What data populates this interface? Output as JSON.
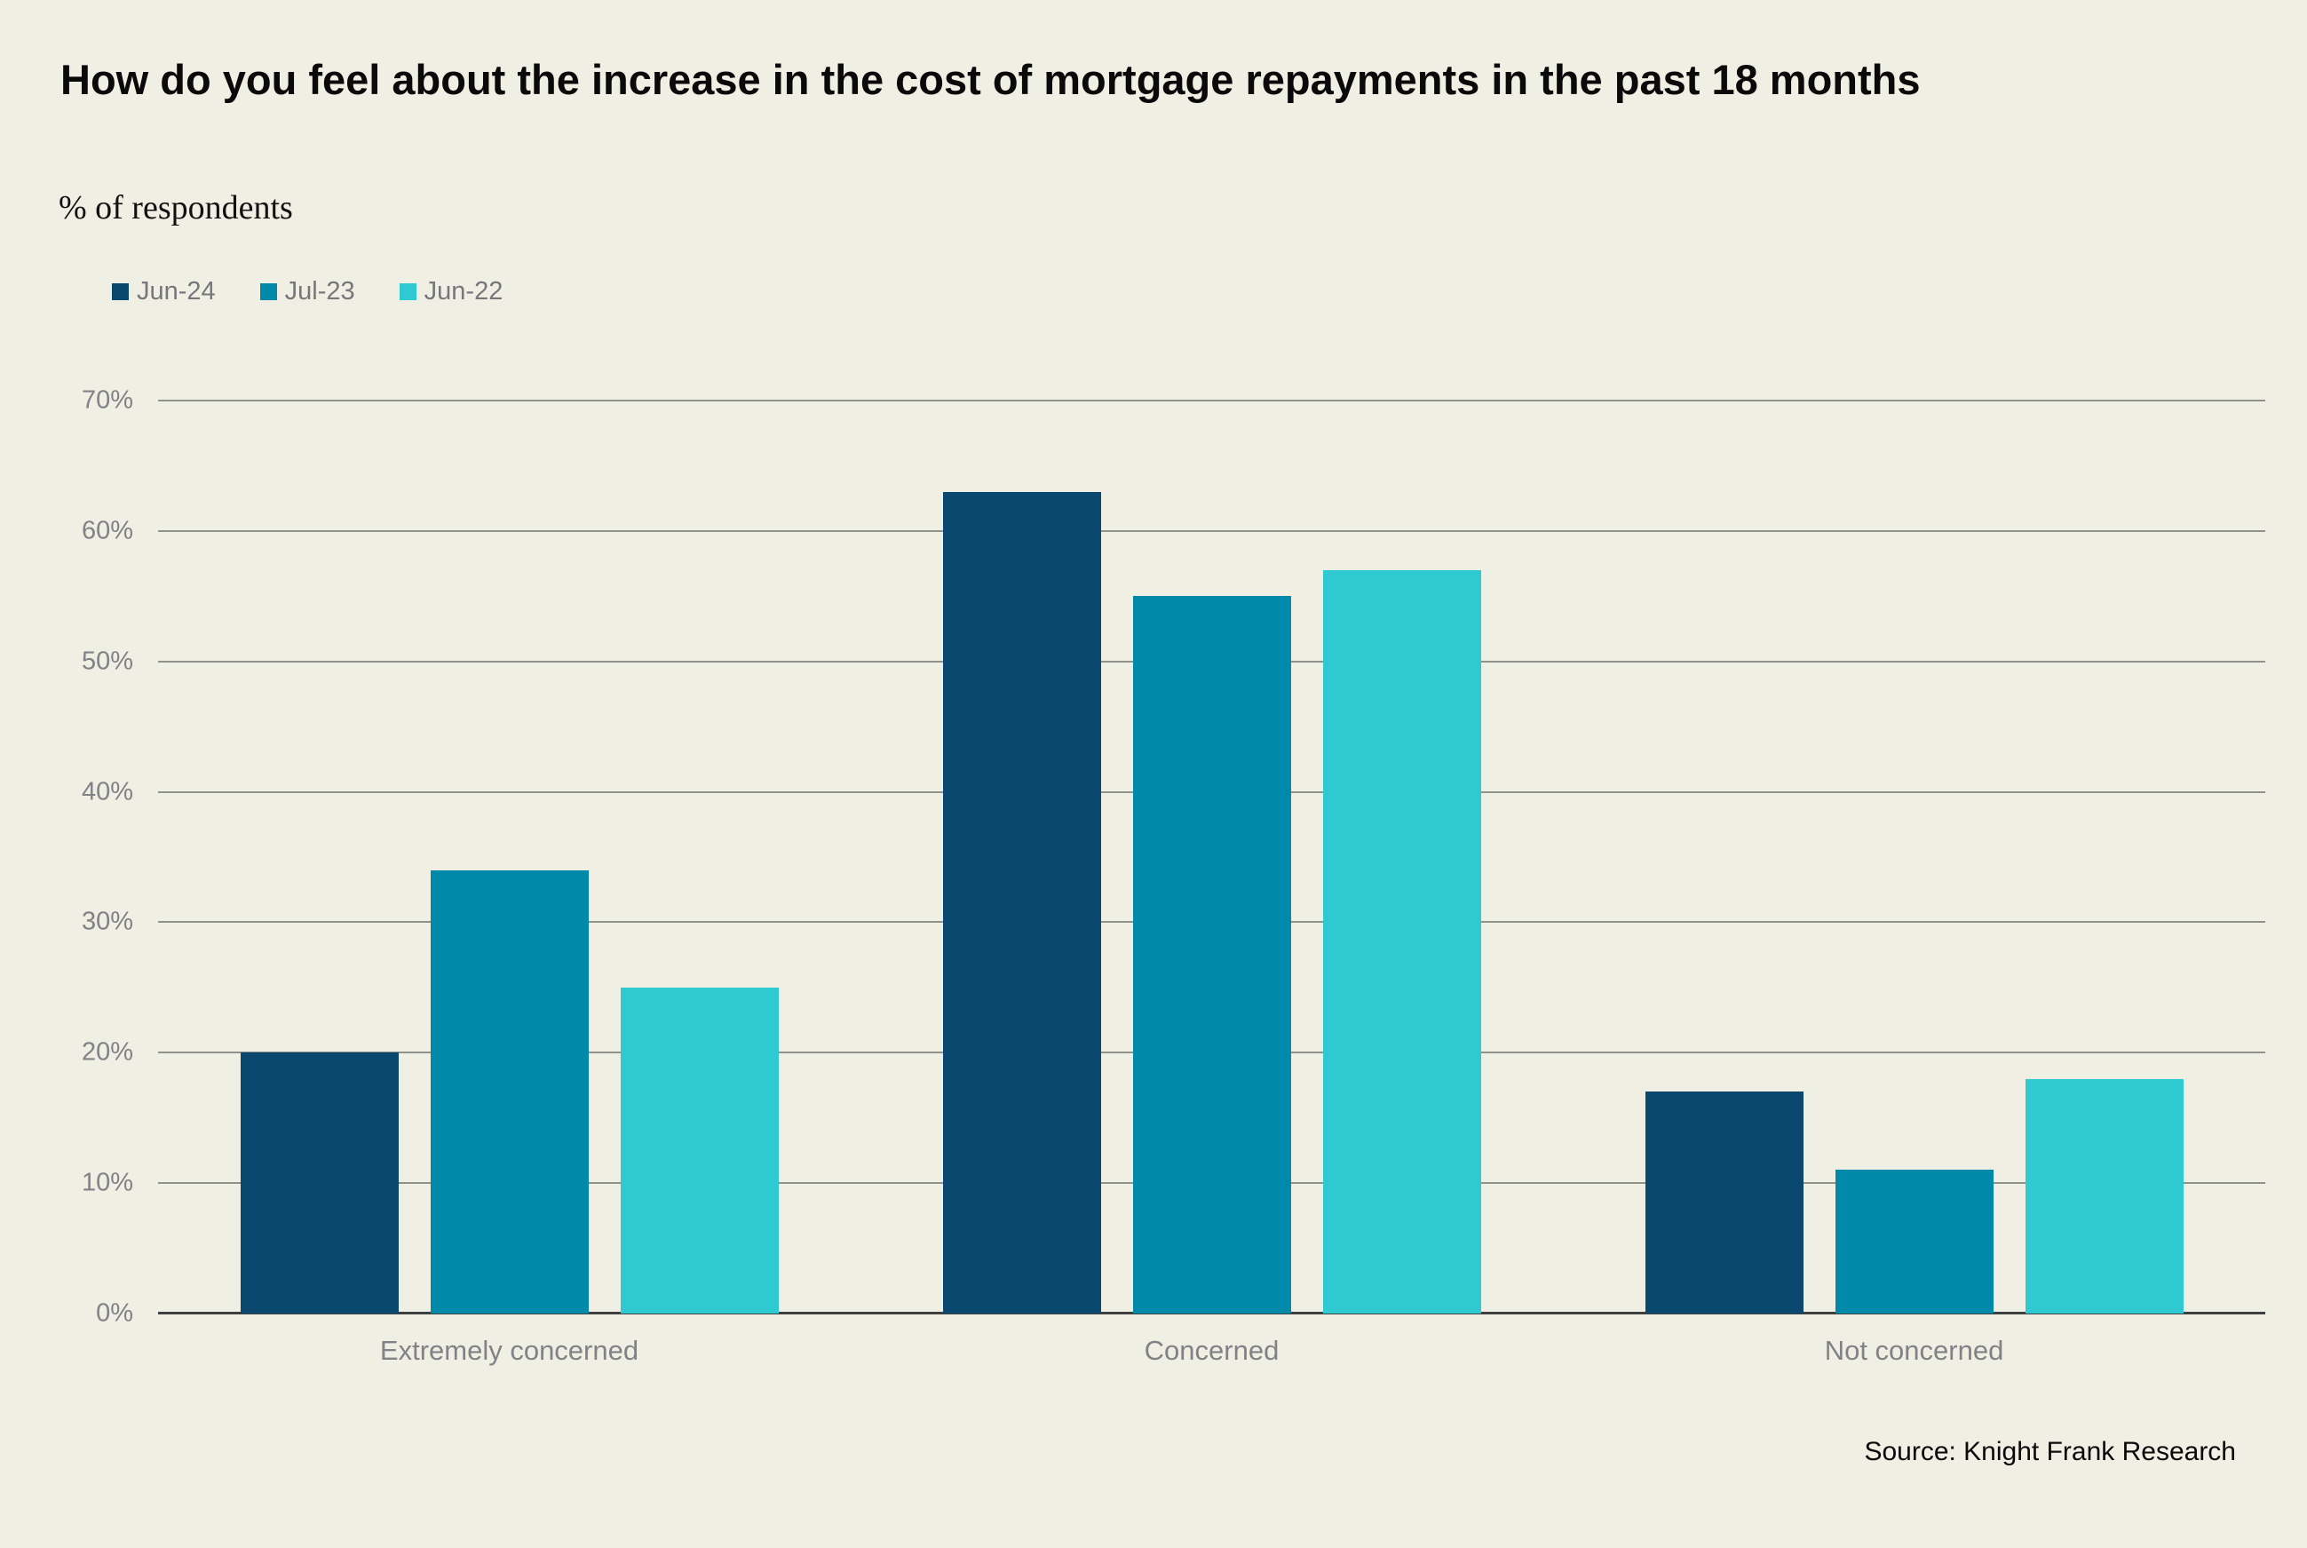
{
  "title": "How do you feel about the increase in the cost of mortgage repayments in the past 18 months",
  "subtitle": "% of respondents",
  "source_text": "Source: Knight Frank Research",
  "colors": {
    "background": "#F0EFE4",
    "gridline": "#8F918B",
    "axis_line": "#3E3F3F",
    "tick_label": "#808285",
    "legend_label": "#76777B",
    "title_text": "#0A0A0A",
    "series_jun24": "#0A4870",
    "series_jul23": "#0089A8",
    "series_jun22": "#2EC9D1"
  },
  "chart_data": {
    "type": "bar",
    "title": "How do you feel about the increase in the cost of mortgage repayments in the past 18 months",
    "subtitle": "% of respondents",
    "categories": [
      "Extremely concerned",
      "Concerned",
      "Not concerned"
    ],
    "series": [
      {
        "name": "Jun-24",
        "color": "#0A4870",
        "values": [
          20,
          63,
          17
        ]
      },
      {
        "name": "Jul-23",
        "color": "#0089A8",
        "values": [
          34,
          55,
          11
        ]
      },
      {
        "name": "Jun-22",
        "color": "#2EC9D1",
        "values": [
          25,
          57,
          18
        ]
      }
    ],
    "xlabel": "",
    "ylabel": "% of respondents",
    "ylim": [
      0,
      70
    ],
    "ytick_step": 10,
    "yticks": [
      "0%",
      "10%",
      "20%",
      "30%",
      "40%",
      "50%",
      "60%",
      "70%"
    ],
    "grid": true,
    "legend_position": "top-left",
    "source": "Source: Knight Frank Research"
  }
}
